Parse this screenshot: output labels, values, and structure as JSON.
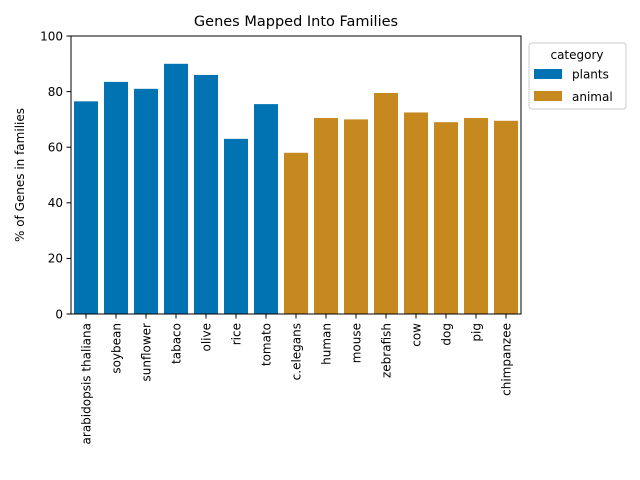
{
  "chart_data": {
    "type": "bar",
    "title": "Genes Mapped Into Families",
    "xlabel": "",
    "ylabel": "% of Genes in families",
    "ylim": [
      0,
      100
    ],
    "yticks": [
      0,
      20,
      40,
      60,
      80,
      100
    ],
    "grid": false,
    "legend": {
      "title": "category",
      "placement": "top-right-outside",
      "entries": [
        {
          "name": "plants",
          "color": "#0173b2"
        },
        {
          "name": "animal",
          "color": "#c6891f"
        }
      ]
    },
    "categories": [
      "arabidopsis thaliana",
      "soybean",
      "sunflower",
      "tabaco",
      "olive",
      "rice",
      "tomato",
      "c.elegans",
      "human",
      "mouse",
      "zebrafish",
      "cow",
      "dog",
      "pig",
      "chimpanzee"
    ],
    "values": [
      76.5,
      83.5,
      81,
      90,
      86,
      63,
      75.5,
      58,
      70.5,
      70,
      79.5,
      72.5,
      69,
      70.5,
      69.5
    ],
    "groups": [
      "plants",
      "plants",
      "plants",
      "plants",
      "plants",
      "plants",
      "plants",
      "animal",
      "animal",
      "animal",
      "animal",
      "animal",
      "animal",
      "animal",
      "animal"
    ]
  }
}
